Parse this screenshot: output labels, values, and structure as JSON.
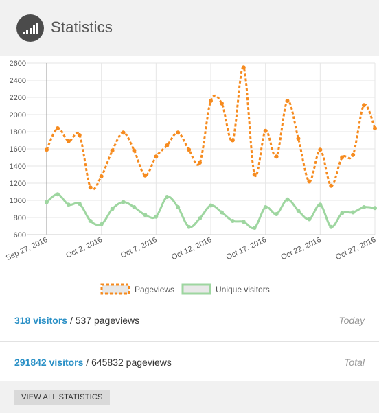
{
  "header": {
    "title": "Statistics",
    "icon": "signal-bars-icon"
  },
  "chart_data": {
    "type": "line",
    "ylim": [
      600,
      2600
    ],
    "yticks": [
      "600",
      "800",
      "1000",
      "1200",
      "1400",
      "1600",
      "1800",
      "2000",
      "2200",
      "2400",
      "2600"
    ],
    "xticks": [
      "Sep 27, 2016",
      "Oct 2, 2016",
      "Oct 7, 2016",
      "Oct 12, 2016",
      "Oct 17, 2016",
      "Oct 22, 2016",
      "Oct 27, 2016"
    ],
    "grid": true,
    "legend_position": "bottom",
    "series": [
      {
        "name": "Pageviews",
        "color": "#f68b1f",
        "style": "dotted",
        "values": [
          1590,
          1840,
          1690,
          1760,
          1150,
          1280,
          1580,
          1790,
          1580,
          1290,
          1510,
          1640,
          1790,
          1590,
          1440,
          2160,
          2130,
          1700,
          2550,
          1300,
          1810,
          1510,
          2160,
          1720,
          1220,
          1590,
          1170,
          1500,
          1530,
          2110,
          1840
        ]
      },
      {
        "name": "Unique visitors",
        "color": "#9ed6a0",
        "style": "solid",
        "values": [
          980,
          1070,
          950,
          960,
          760,
          720,
          900,
          980,
          920,
          830,
          810,
          1040,
          920,
          690,
          790,
          940,
          860,
          760,
          750,
          680,
          920,
          840,
          1010,
          880,
          780,
          950,
          690,
          850,
          860,
          920,
          910
        ]
      }
    ]
  },
  "stats": {
    "today": {
      "visitors": "318 visitors",
      "separator": " / ",
      "pageviews": "537 pageviews",
      "label": "Today"
    },
    "total": {
      "visitors": "291842 visitors",
      "separator": " / ",
      "pageviews": "645832 pageviews",
      "label": "Total"
    }
  },
  "footer": {
    "button_label": "VIEW ALL STATISTICS"
  }
}
